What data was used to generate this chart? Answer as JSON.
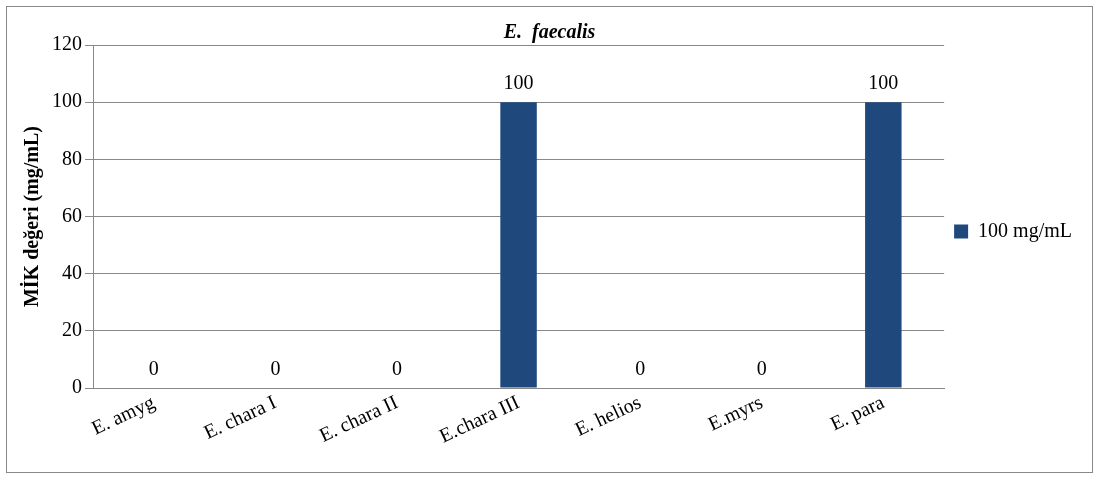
{
  "chart_data": {
    "type": "bar",
    "title": "E.  faecalis",
    "ylabel": "MİK değeri (mg/mL)",
    "categories": [
      "E. amyg",
      "E. chara I",
      "E. chara II",
      "E.chara III",
      "E. helios",
      "E.myrs",
      "E. para"
    ],
    "series": [
      {
        "name": "100 mg/mL",
        "color": "#1f497d",
        "values": [
          0,
          0,
          0,
          100,
          0,
          0,
          100
        ]
      }
    ],
    "ylim": [
      0,
      120
    ],
    "yticks": [
      0,
      20,
      40,
      60,
      80,
      100,
      120
    ],
    "grid": "y",
    "legend": "right",
    "data_labels": true
  }
}
